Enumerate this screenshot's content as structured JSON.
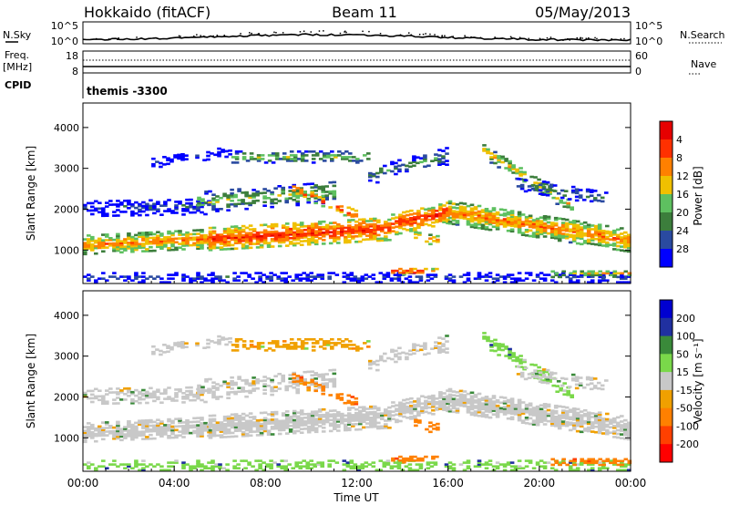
{
  "header": {
    "station": "Hokkaido (fitACF)",
    "beam": "Beam 11",
    "date": "05/May/2013"
  },
  "left_labels": {
    "nsky": "N.Sky",
    "freq_line1": "Freq.",
    "freq_line2": "[MHz]",
    "cpid": "CPID"
  },
  "right_labels": {
    "nsearch": "N.Search",
    "nave": "Nave"
  },
  "cpid_text": "themis -3300",
  "colors": {
    "power": [
      "#0000ff",
      "#2a4aa0",
      "#3c7e3c",
      "#5ec060",
      "#f0c000",
      "#ff8000",
      "#ff3000",
      "#e60000"
    ],
    "velocity": [
      "#ff0000",
      "#ff4000",
      "#ff8000",
      "#f0a000",
      "#c8c8c8",
      "#7ad84a",
      "#3a8a3a",
      "#2030a0",
      "#0000d0"
    ]
  },
  "chart_data": [
    {
      "type": "line",
      "panel": "noise",
      "y_ticks": [
        "10^5",
        "10^0"
      ],
      "y2_ticks": [
        "10^5",
        "10^0"
      ]
    },
    {
      "type": "line",
      "panel": "frequency",
      "y_ticks": [
        "18",
        "8"
      ],
      "y2_ticks": [
        "60",
        "0"
      ]
    },
    {
      "type": "heatmap",
      "panel": "power",
      "ylabel": "Slant Range [km]",
      "yticks": [
        1000,
        2000,
        3000,
        4000
      ],
      "ylim": [
        180,
        4600
      ],
      "xlim": [
        0,
        24
      ],
      "colorbar_label": "Power [dB]",
      "colorbar_ticks": [
        "4",
        "8",
        "12",
        "16",
        "20",
        "24",
        "28"
      ]
    },
    {
      "type": "heatmap",
      "panel": "velocity",
      "ylabel": "Slant Range [km]",
      "yticks": [
        1000,
        2000,
        3000,
        4000
      ],
      "ylim": [
        180,
        4600
      ],
      "xlim": [
        0,
        24
      ],
      "xlabel": "Time UT",
      "xtick_labels": [
        "00:00",
        "04:00",
        "08:00",
        "12:00",
        "16:00",
        "20:00",
        "00:00"
      ],
      "colorbar_label": "Velocity [m s⁻¹]",
      "colorbar_ticks": [
        "200",
        "100",
        "50",
        "15",
        "-15",
        "-50",
        "-100",
        "-200"
      ]
    }
  ]
}
